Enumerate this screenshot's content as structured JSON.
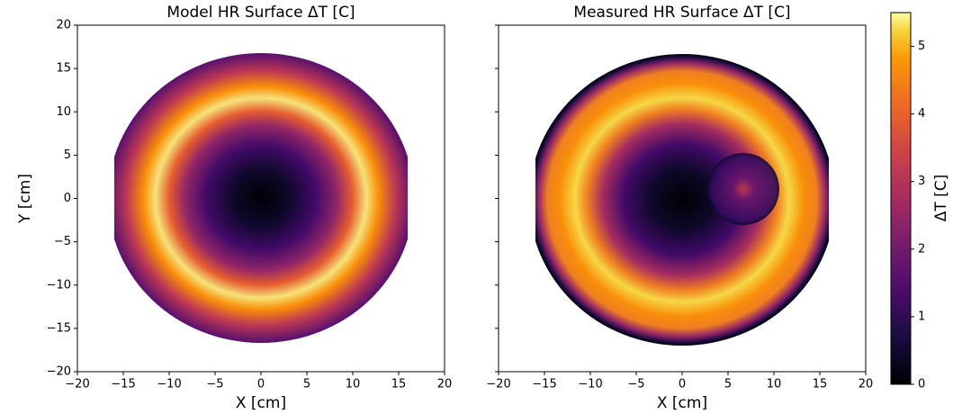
{
  "chart_data": [
    {
      "type": "heatmap",
      "title": "Model HR Surface ΔT [C]",
      "x_label": "X [cm]",
      "y_label": "Y [cm]",
      "xlim": [
        -20,
        20
      ],
      "ylim": [
        -20,
        20
      ],
      "xticks": [
        {
          "value": -20,
          "label": "−20"
        },
        {
          "value": -15,
          "label": "−15"
        },
        {
          "value": -10,
          "label": "−10"
        },
        {
          "value": -5,
          "label": "−5"
        },
        0,
        5,
        10,
        15,
        20
      ],
      "yticks": [
        {
          "value": -20,
          "label": "−20"
        },
        {
          "value": -15,
          "label": "−15"
        },
        {
          "value": -10,
          "label": "−10"
        },
        {
          "value": -5,
          "label": "−5"
        },
        0,
        5,
        10,
        15,
        20
      ]
    },
    {
      "type": "heatmap",
      "title": "Measured HR Surface ΔT [C]",
      "x_label": "X [cm]",
      "xlim": [
        -20,
        20
      ],
      "ylim": [
        -20,
        20
      ],
      "xticks": [
        {
          "value": -20,
          "label": "−20"
        },
        {
          "value": -15,
          "label": "−15"
        },
        {
          "value": -10,
          "label": "−10"
        },
        {
          "value": -5,
          "label": "−5"
        },
        0,
        5,
        10,
        15,
        20
      ],
      "yticks": [
        -20,
        -15,
        -10,
        -5,
        0,
        5,
        10,
        15,
        20
      ]
    }
  ],
  "colorbar": {
    "label": "ΔT [C]",
    "lim": [
      0,
      5.5
    ],
    "ticks": [
      0,
      1,
      2,
      3,
      4,
      5
    ]
  }
}
